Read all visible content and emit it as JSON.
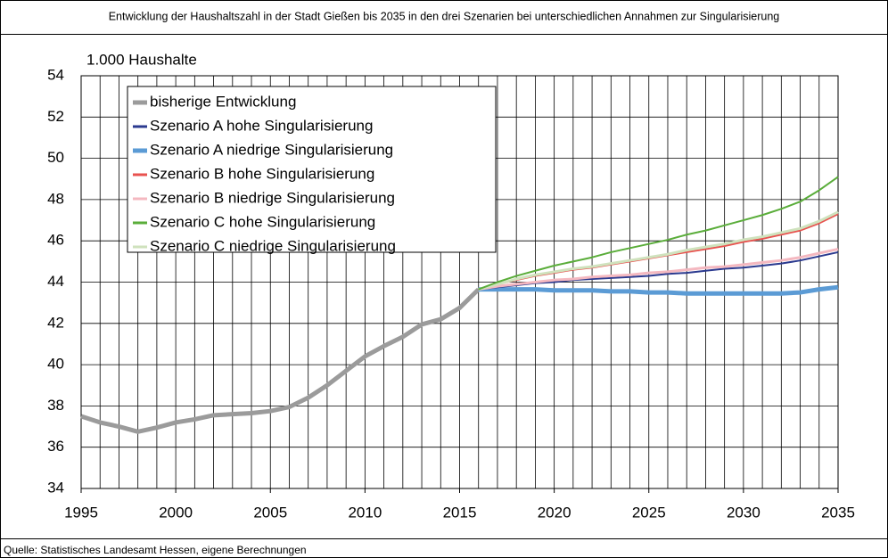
{
  "chart_data": {
    "type": "line",
    "title": "Entwicklung der Haushaltszahl in der Stadt Gießen bis 2035 in den drei Szenarien bei unterschiedlichen Annahmen zur Singularisierung",
    "y_label": "1.000 Haushalte",
    "source": "Quelle: Statistisches Landesamt Hessen, eigene Berechnungen",
    "xlim": [
      1995,
      2035
    ],
    "xticks": [
      1995,
      2000,
      2005,
      2010,
      2015,
      2020,
      2025,
      2030,
      2035
    ],
    "ylim": [
      34,
      54
    ],
    "yticks": [
      34,
      36,
      38,
      40,
      42,
      44,
      46,
      48,
      50,
      52,
      54
    ],
    "grid": true,
    "x_grid_interval": 1,
    "legend": "upper left",
    "series": [
      {
        "name": "bisherige Entwicklung",
        "color": "#9b9b9b",
        "line_width": 5,
        "x": [
          1995,
          1996,
          1997,
          1998,
          1999,
          2000,
          2001,
          2002,
          2003,
          2004,
          2005,
          2006,
          2007,
          2008,
          2009,
          2010,
          2011,
          2012,
          2013,
          2014,
          2015,
          2016
        ],
        "values": [
          37.5,
          37.2,
          37.0,
          36.75,
          36.95,
          37.2,
          37.35,
          37.55,
          37.6,
          37.65,
          37.75,
          37.95,
          38.4,
          39.0,
          39.7,
          40.4,
          40.9,
          41.35,
          41.95,
          42.2,
          42.75,
          43.65
        ]
      },
      {
        "name": "Szenario A hohe Singularisierung",
        "color": "#2b3a8f",
        "line_width": 2,
        "x": [
          2016,
          2017,
          2018,
          2019,
          2020,
          2021,
          2022,
          2023,
          2024,
          2025,
          2026,
          2027,
          2028,
          2029,
          2030,
          2031,
          2032,
          2033,
          2034,
          2035
        ],
        "values": [
          43.65,
          43.75,
          43.85,
          43.95,
          44.0,
          44.1,
          44.15,
          44.2,
          44.25,
          44.3,
          44.4,
          44.45,
          44.55,
          44.65,
          44.7,
          44.8,
          44.9,
          45.05,
          45.25,
          45.45
        ]
      },
      {
        "name": "Szenario A niedrige Singularisierung",
        "color": "#5b9bd5",
        "line_width": 5,
        "x": [
          2016,
          2017,
          2018,
          2019,
          2020,
          2021,
          2022,
          2023,
          2024,
          2025,
          2026,
          2027,
          2028,
          2029,
          2030,
          2031,
          2032,
          2033,
          2034,
          2035
        ],
        "values": [
          43.65,
          43.65,
          43.65,
          43.65,
          43.6,
          43.6,
          43.6,
          43.55,
          43.55,
          43.5,
          43.5,
          43.45,
          43.45,
          43.45,
          43.45,
          43.45,
          43.45,
          43.5,
          43.65,
          43.75
        ]
      },
      {
        "name": "Szenario B hohe Singularisierung",
        "color": "#e8524f",
        "line_width": 2,
        "x": [
          2016,
          2017,
          2018,
          2019,
          2020,
          2021,
          2022,
          2023,
          2024,
          2025,
          2026,
          2027,
          2028,
          2029,
          2030,
          2031,
          2032,
          2033,
          2034,
          2035
        ],
        "values": [
          43.65,
          43.9,
          44.1,
          44.3,
          44.45,
          44.6,
          44.7,
          44.85,
          45.0,
          45.15,
          45.3,
          45.45,
          45.6,
          45.75,
          45.95,
          46.1,
          46.3,
          46.5,
          46.85,
          47.3
        ]
      },
      {
        "name": "Szenario B niedrige Singularisierung",
        "color": "#f4b8c0",
        "line_width": 3,
        "x": [
          2016,
          2017,
          2018,
          2019,
          2020,
          2021,
          2022,
          2023,
          2024,
          2025,
          2026,
          2027,
          2028,
          2029,
          2030,
          2031,
          2032,
          2033,
          2034,
          2035
        ],
        "values": [
          43.65,
          43.8,
          43.9,
          44.0,
          44.1,
          44.15,
          44.25,
          44.3,
          44.35,
          44.45,
          44.5,
          44.6,
          44.7,
          44.75,
          44.85,
          44.95,
          45.05,
          45.2,
          45.4,
          45.6
        ]
      },
      {
        "name": "Szenario C hohe Singularisierung",
        "color": "#5aad3a",
        "line_width": 2,
        "x": [
          2016,
          2017,
          2018,
          2019,
          2020,
          2021,
          2022,
          2023,
          2024,
          2025,
          2026,
          2027,
          2028,
          2029,
          2030,
          2031,
          2032,
          2033,
          2034,
          2035
        ],
        "values": [
          43.65,
          44.0,
          44.3,
          44.55,
          44.8,
          45.0,
          45.2,
          45.45,
          45.65,
          45.85,
          46.05,
          46.3,
          46.5,
          46.75,
          47.0,
          47.25,
          47.55,
          47.9,
          48.45,
          49.1
        ]
      },
      {
        "name": "Szenario C niedrige Singularisierung",
        "color": "#cfe2bd",
        "line_width": 3,
        "x": [
          2016,
          2017,
          2018,
          2019,
          2020,
          2021,
          2022,
          2023,
          2024,
          2025,
          2026,
          2027,
          2028,
          2029,
          2030,
          2031,
          2032,
          2033,
          2034,
          2035
        ],
        "values": [
          43.65,
          43.9,
          44.15,
          44.35,
          44.5,
          44.65,
          44.75,
          44.9,
          45.05,
          45.2,
          45.35,
          45.55,
          45.7,
          45.85,
          46.05,
          46.2,
          46.4,
          46.6,
          46.95,
          47.4
        ]
      }
    ]
  }
}
